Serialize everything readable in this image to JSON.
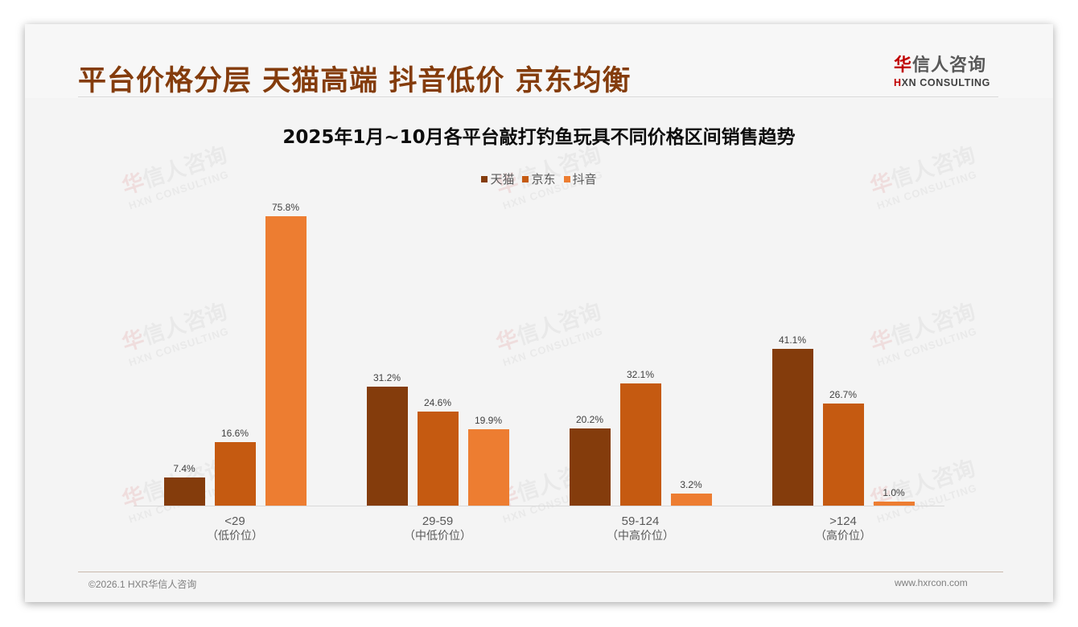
{
  "header": {
    "title": "平台价格分层 天猫高端 抖音低价 京东均衡",
    "logo": {
      "cn_first": "华",
      "cn_rest": "信人咨询",
      "en_first": "H",
      "en_rest": "XN CONSULTING"
    }
  },
  "watermark": {
    "cn_first": "华",
    "cn_rest": "信人咨询",
    "en": "HXN CONSULTING"
  },
  "chart_data": {
    "type": "bar",
    "title": "2025年1月~10月各平台敲打钓鱼玩具不同价格区间销售趋势",
    "categories": [
      "<29",
      "29-59",
      "59-124",
      ">124"
    ],
    "category_sublabels": [
      "（低价位）",
      "（中低价位）",
      "（中高价位）",
      "（高价位）"
    ],
    "series": [
      {
        "name": "天猫",
        "color": "#843c0c",
        "values": [
          7.4,
          31.2,
          20.2,
          41.1
        ]
      },
      {
        "name": "京东",
        "color": "#c55a11",
        "values": [
          16.6,
          24.6,
          32.1,
          26.7
        ]
      },
      {
        "name": "抖音",
        "color": "#ed7d31",
        "values": [
          75.8,
          19.9,
          3.2,
          1.0
        ]
      }
    ],
    "value_labels": [
      [
        "7.4%",
        "31.2%",
        "20.2%",
        "41.1%"
      ],
      [
        "16.6%",
        "24.6%",
        "32.1%",
        "26.7%"
      ],
      [
        "75.8%",
        "19.9%",
        "3.2%",
        "1.0%"
      ]
    ],
    "xlabel": "",
    "ylabel": "",
    "ylim": [
      0,
      80
    ],
    "grid": false,
    "legend_position": "top",
    "unit": "%"
  },
  "footer": {
    "copyright": "©2026.1 HXR华信人咨询",
    "website": "www.hxrcon.com"
  }
}
